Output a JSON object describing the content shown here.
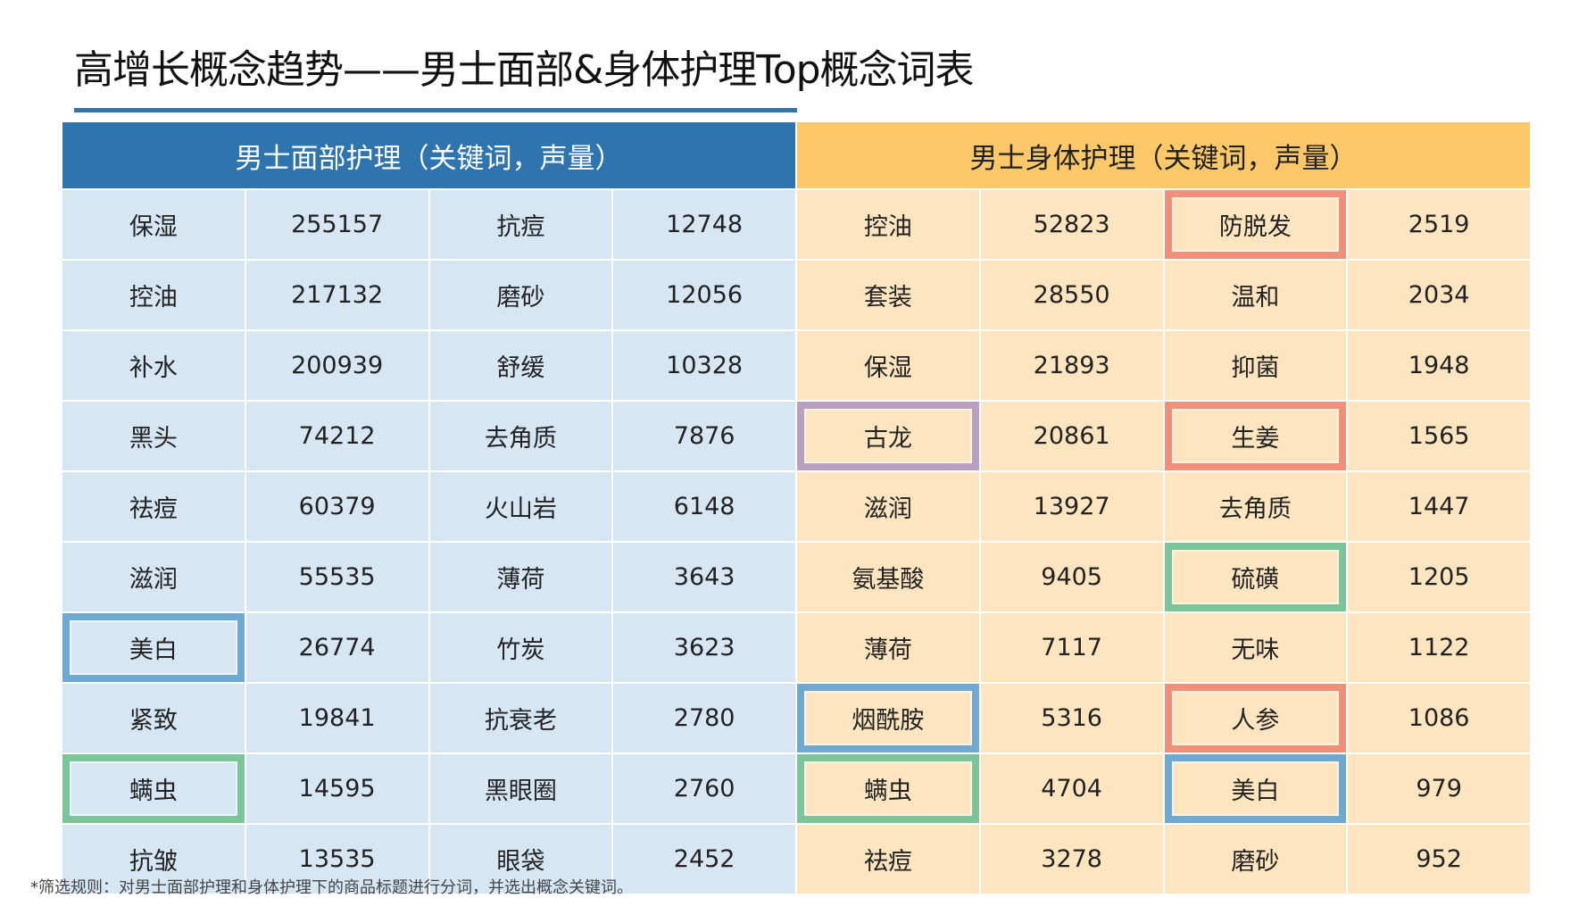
{
  "title": "高增长概念趋势——男士面部&身体护理Top概念词表",
  "colors": {
    "face_header": "#2e75b0",
    "body_header": "#fcc86a",
    "face_cell": "#d6e6f3",
    "body_cell": "#fde5c0",
    "blue": "#6fa8d0",
    "green": "#7cc49a",
    "red": "#f0907a",
    "purple": "#b9a0c0"
  },
  "face": {
    "header": "男士面部护理（关键词，声量）",
    "rows": [
      [
        "保湿",
        "255157",
        "抗痘",
        "12748"
      ],
      [
        "控油",
        "217132",
        "磨砂",
        "12056"
      ],
      [
        "补水",
        "200939",
        "舒缓",
        "10328"
      ],
      [
        "黑头",
        "74212",
        "去角质",
        "7876"
      ],
      [
        "祛痘",
        "60379",
        "火山岩",
        "6148"
      ],
      [
        "滋润",
        "55535",
        "薄荷",
        "3643"
      ],
      [
        "美白",
        "26774",
        "竹炭",
        "3623"
      ],
      [
        "紧致",
        "19841",
        "抗衰老",
        "2780"
      ],
      [
        "螨虫",
        "14595",
        "黑眼圈",
        "2760"
      ],
      [
        "抗皱",
        "13535",
        "眼袋",
        "2452"
      ]
    ]
  },
  "body": {
    "header": "男士身体护理（关键词，声量）",
    "rows": [
      [
        "控油",
        "52823",
        "防脱发",
        "2519"
      ],
      [
        "套装",
        "28550",
        "温和",
        "2034"
      ],
      [
        "保湿",
        "21893",
        "抑菌",
        "1948"
      ],
      [
        "古龙",
        "20861",
        "生姜",
        "1565"
      ],
      [
        "滋润",
        "13927",
        "去角质",
        "1447"
      ],
      [
        "氨基酸",
        "9405",
        "硫磺",
        "1205"
      ],
      [
        "薄荷",
        "7117",
        "无味",
        "1122"
      ],
      [
        "烟酰胺",
        "5316",
        "人参",
        "1086"
      ],
      [
        "螨虫",
        "4704",
        "美白",
        "979"
      ],
      [
        "祛痘",
        "3278",
        "磨砂",
        "952"
      ]
    ]
  },
  "highlights": [
    {
      "table": "face",
      "row": 6,
      "col": 0,
      "color": "blue"
    },
    {
      "table": "face",
      "row": 8,
      "col": 0,
      "color": "green"
    },
    {
      "table": "body",
      "row": 0,
      "col": 2,
      "color": "red"
    },
    {
      "table": "body",
      "row": 3,
      "col": 0,
      "color": "purple"
    },
    {
      "table": "body",
      "row": 3,
      "col": 2,
      "color": "red"
    },
    {
      "table": "body",
      "row": 5,
      "col": 2,
      "color": "green"
    },
    {
      "table": "body",
      "row": 7,
      "col": 0,
      "color": "blue"
    },
    {
      "table": "body",
      "row": 7,
      "col": 2,
      "color": "red"
    },
    {
      "table": "body",
      "row": 8,
      "col": 0,
      "color": "green"
    },
    {
      "table": "body",
      "row": 8,
      "col": 2,
      "color": "blue"
    }
  ],
  "footnote": "*筛选规则：对男士面部护理和身体护理下的商品标题进行分词，并选出概念关键词。"
}
